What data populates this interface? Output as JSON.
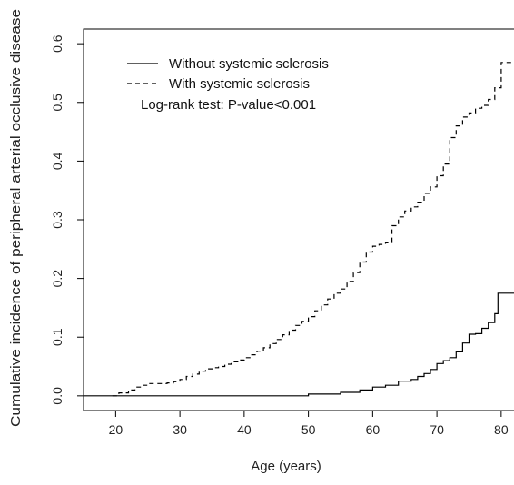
{
  "chart_data": {
    "type": "line",
    "title": "",
    "xlabel": "Age (years)",
    "ylabel": "Cumulative incidence of peripheral arterial occlusive disease",
    "xlim": [
      15,
      82
    ],
    "ylim": [
      -0.025,
      0.625
    ],
    "xticks": [
      20,
      30,
      40,
      50,
      60,
      70,
      80
    ],
    "yticks": [
      0.0,
      0.1,
      0.2,
      0.3,
      0.4,
      0.5,
      0.6
    ],
    "xtick_labels": [
      "20",
      "30",
      "40",
      "50",
      "60",
      "70",
      "80"
    ],
    "ytick_labels": [
      "0.0",
      "0.1",
      "0.2",
      "0.3",
      "0.4",
      "0.5",
      "0.6"
    ],
    "legend_position": "top-left",
    "annotation": "Log-rank test: P-value<0.001",
    "series": [
      {
        "name": "Without systemic sclerosis",
        "line_style": "solid",
        "color": "#000000",
        "x": [
          15,
          43,
          50,
          55,
          58,
          60,
          62,
          64,
          66,
          67,
          68,
          69,
          70,
          71,
          72,
          73,
          74,
          75,
          76,
          77,
          78,
          79,
          79.5,
          82
        ],
        "y": [
          0,
          0,
          0.003,
          0.006,
          0.01,
          0.015,
          0.018,
          0.025,
          0.028,
          0.033,
          0.038,
          0.045,
          0.055,
          0.06,
          0.065,
          0.075,
          0.09,
          0.105,
          0.106,
          0.115,
          0.125,
          0.14,
          0.175,
          0.175
        ]
      },
      {
        "name": "With systemic sclerosis",
        "line_style": "dashed",
        "color": "#000000",
        "x": [
          19.5,
          20.5,
          22,
          23,
          24,
          25,
          26,
          27,
          28,
          29,
          30,
          31,
          32,
          33,
          34,
          35,
          36,
          37,
          38,
          39,
          40,
          41,
          42,
          43,
          44,
          45,
          46,
          47,
          48,
          49,
          50,
          51,
          52,
          53,
          54,
          55,
          56,
          57,
          58,
          59,
          60,
          61,
          62,
          63,
          64,
          65,
          66,
          67,
          68,
          69,
          70,
          71,
          72,
          73,
          74,
          75,
          76,
          77,
          78,
          79,
          80,
          82
        ],
        "y": [
          0,
          0.005,
          0.01,
          0.015,
          0.018,
          0.021,
          0.021,
          0.021,
          0.022,
          0.024,
          0.028,
          0.033,
          0.037,
          0.042,
          0.046,
          0.048,
          0.05,
          0.054,
          0.058,
          0.061,
          0.065,
          0.07,
          0.076,
          0.082,
          0.089,
          0.096,
          0.104,
          0.112,
          0.12,
          0.127,
          0.135,
          0.145,
          0.155,
          0.165,
          0.175,
          0.182,
          0.195,
          0.21,
          0.228,
          0.245,
          0.255,
          0.258,
          0.262,
          0.29,
          0.305,
          0.315,
          0.322,
          0.33,
          0.345,
          0.356,
          0.375,
          0.395,
          0.44,
          0.46,
          0.475,
          0.482,
          0.49,
          0.495,
          0.505,
          0.525,
          0.568,
          0.568
        ]
      }
    ]
  }
}
